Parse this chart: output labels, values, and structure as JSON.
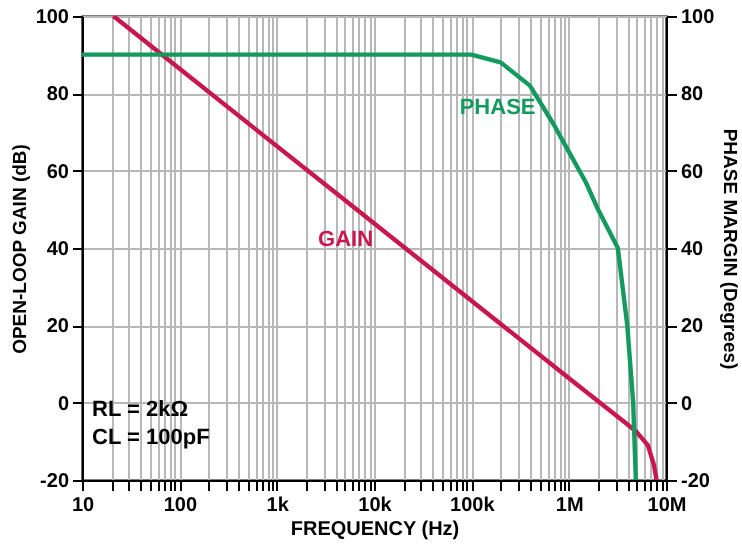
{
  "chart_data": {
    "type": "line",
    "xlabel": "FREQUENCY (Hz)",
    "ylabel": "OPEN-LOOP GAIN (dB)",
    "y2label": "PHASE MARGIN (Degrees)",
    "log": "x",
    "grid": true,
    "marker": "none",
    "line_style": "solid",
    "xlim": [
      10,
      10000000
    ],
    "xticks": [
      {
        "value": 10,
        "label": "10"
      },
      {
        "value": 20,
        "label": null
      },
      {
        "value": 30,
        "label": null
      },
      {
        "value": 40,
        "label": null
      },
      {
        "value": 50,
        "label": null
      },
      {
        "value": 60,
        "label": null
      },
      {
        "value": 70,
        "label": null
      },
      {
        "value": 80,
        "label": null
      },
      {
        "value": 90,
        "label": null
      },
      {
        "value": 100,
        "label": "100"
      },
      {
        "value": 200,
        "label": null
      },
      {
        "value": 300,
        "label": null
      },
      {
        "value": 400,
        "label": null
      },
      {
        "value": 500,
        "label": null
      },
      {
        "value": 600,
        "label": null
      },
      {
        "value": 700,
        "label": null
      },
      {
        "value": 800,
        "label": null
      },
      {
        "value": 900,
        "label": null
      },
      {
        "value": 1000,
        "label": "1k"
      },
      {
        "value": 2000,
        "label": null
      },
      {
        "value": 3000,
        "label": null
      },
      {
        "value": 4000,
        "label": null
      },
      {
        "value": 5000,
        "label": null
      },
      {
        "value": 6000,
        "label": null
      },
      {
        "value": 7000,
        "label": null
      },
      {
        "value": 8000,
        "label": null
      },
      {
        "value": 9000,
        "label": null
      },
      {
        "value": 10000,
        "label": "10k"
      },
      {
        "value": 20000,
        "label": null
      },
      {
        "value": 30000,
        "label": null
      },
      {
        "value": 40000,
        "label": null
      },
      {
        "value": 50000,
        "label": null
      },
      {
        "value": 60000,
        "label": null
      },
      {
        "value": 70000,
        "label": null
      },
      {
        "value": 80000,
        "label": null
      },
      {
        "value": 90000,
        "label": null
      },
      {
        "value": 100000,
        "label": "100k"
      },
      {
        "value": 200000,
        "label": null
      },
      {
        "value": 300000,
        "label": null
      },
      {
        "value": 400000,
        "label": null
      },
      {
        "value": 500000,
        "label": null
      },
      {
        "value": 600000,
        "label": null
      },
      {
        "value": 700000,
        "label": null
      },
      {
        "value": 800000,
        "label": null
      },
      {
        "value": 900000,
        "label": null
      },
      {
        "value": 1000000,
        "label": "1M"
      },
      {
        "value": 2000000,
        "label": null
      },
      {
        "value": 3000000,
        "label": null
      },
      {
        "value": 4000000,
        "label": null
      },
      {
        "value": 5000000,
        "label": null
      },
      {
        "value": 6000000,
        "label": null
      },
      {
        "value": 7000000,
        "label": null
      },
      {
        "value": 8000000,
        "label": null
      },
      {
        "value": 9000000,
        "label": null
      },
      {
        "value": 10000000,
        "label": "10M"
      }
    ],
    "ylim": [
      -20,
      100
    ],
    "yticks": [
      -20,
      0,
      20,
      40,
      60,
      80,
      100
    ],
    "y2lim": [
      -20,
      100
    ],
    "y2ticks": [
      -20,
      0,
      20,
      40,
      60,
      80,
      100
    ],
    "series": [
      {
        "name": "GAIN",
        "color": "#c8174f",
        "x": [
          21,
          100,
          3500,
          1000000,
          4000000,
          5000000,
          6500000,
          7500000,
          8000000
        ],
        "values": [
          100,
          86.4,
          55.5,
          6.4,
          -5.6,
          -7.6,
          -11,
          -16,
          -20
        ]
      },
      {
        "name": "PHASE",
        "color": "#139a5f",
        "axis": "y2",
        "x": [
          10,
          100000,
          200000,
          400000,
          700000,
          1000000,
          1500000,
          2000000,
          3200000,
          4000000,
          4600000,
          4900000
        ],
        "values": [
          90,
          90,
          88,
          82,
          72,
          65,
          57,
          50,
          40,
          20,
          0,
          -20
        ]
      }
    ],
    "annotations": [
      "RL = 2kΩ",
      "CL = 100pF"
    ]
  }
}
